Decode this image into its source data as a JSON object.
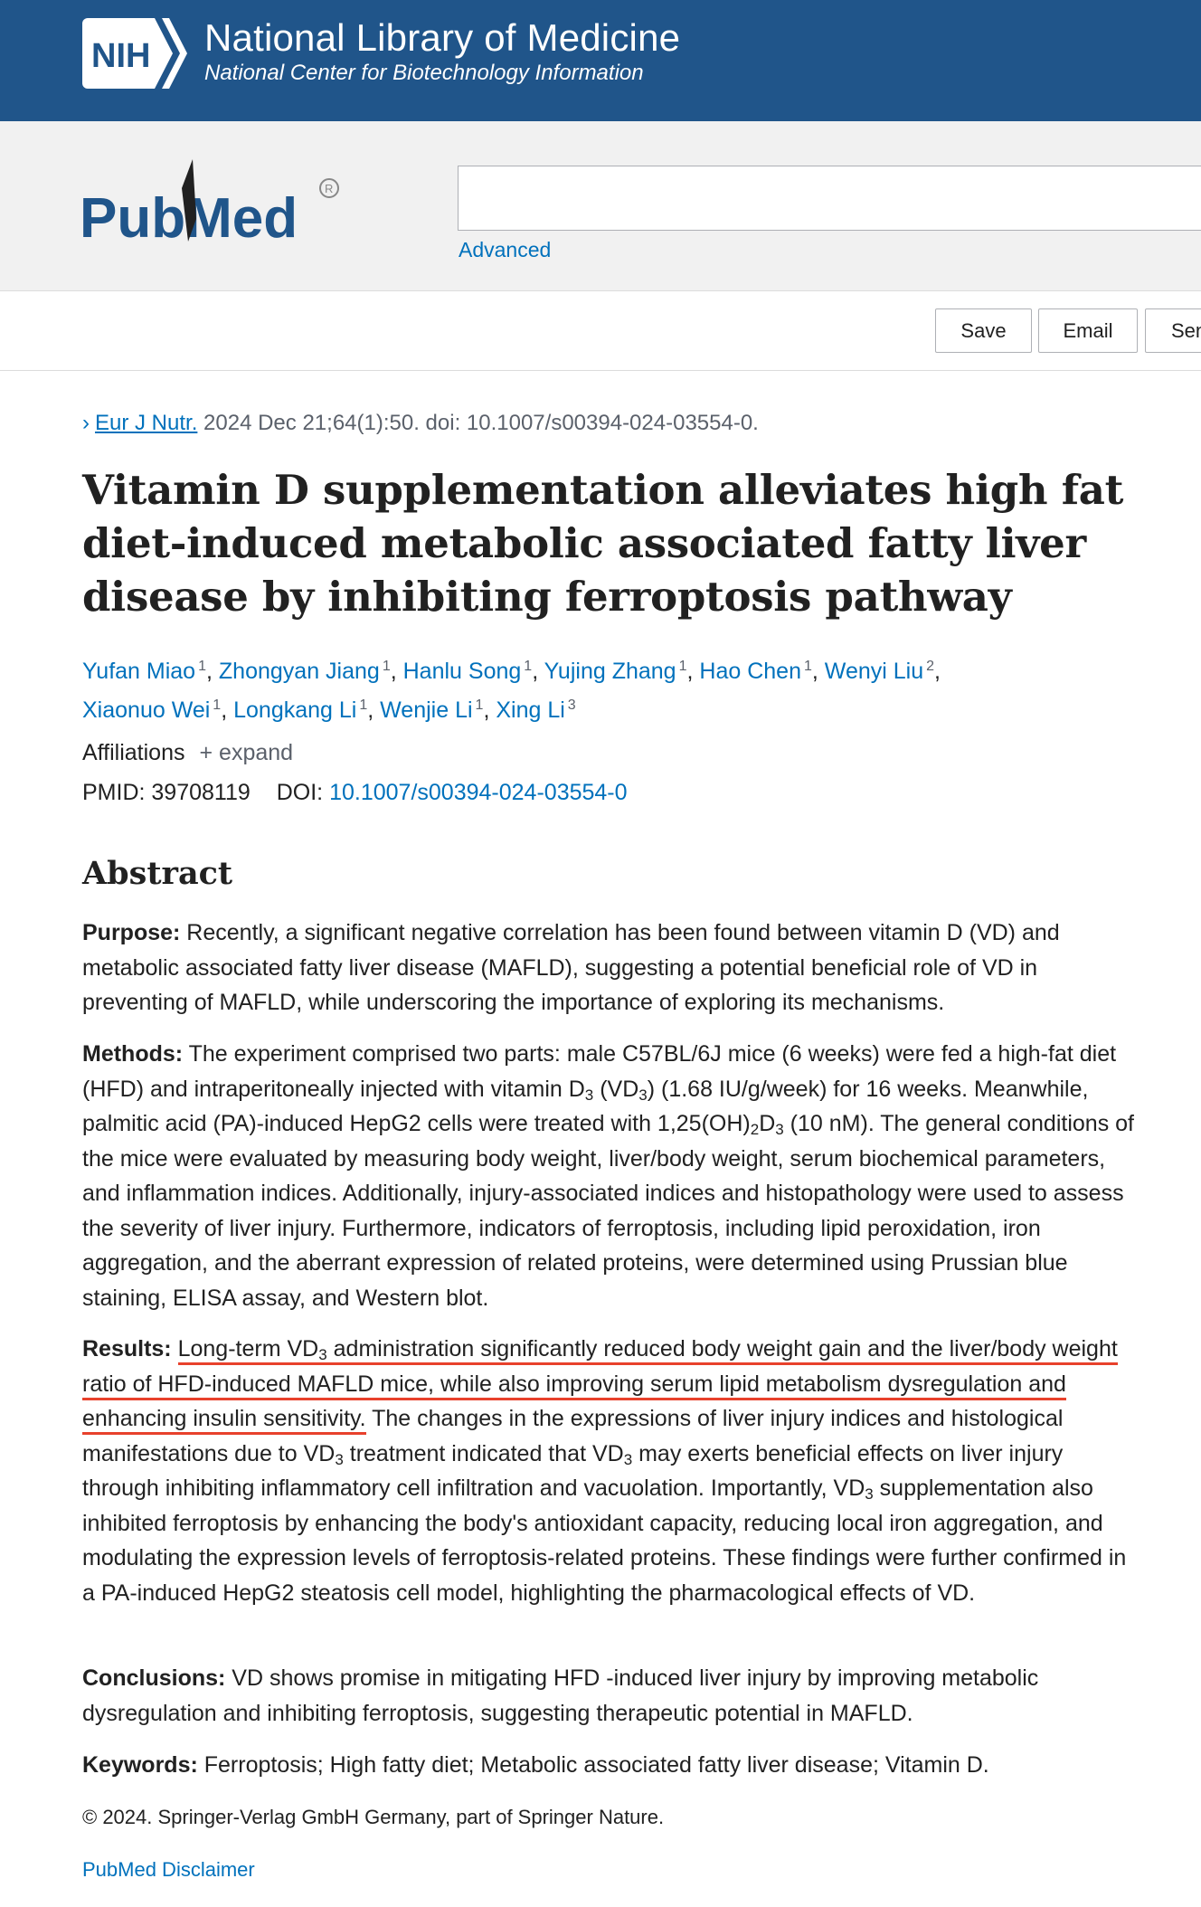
{
  "header": {
    "logo_text": "NIH",
    "title": "National Library of Medicine",
    "subtitle": "National Center for Biotechnology Information",
    "background_color": "#20558a"
  },
  "search": {
    "logo_text": "PubMed",
    "input_value": "",
    "advanced_label": "Advanced"
  },
  "actions": {
    "save_label": "Save",
    "email_label": "Email",
    "send_label": "Send to"
  },
  "citation": {
    "chevron_icon": "chevron-right-icon",
    "journal": "Eur J Nutr.",
    "details": " 2024 Dec 21;64(1):50. doi: 10.1007/s00394-024-03554-0."
  },
  "article": {
    "title": "Vitamin D supplementation alleviates high fat diet-induced metabolic associated fatty liver disease by inhibiting ferroptosis pathway",
    "authors": [
      {
        "name": "Yufan Miao",
        "aff": "1"
      },
      {
        "name": "Zhongyan Jiang",
        "aff": "1"
      },
      {
        "name": "Hanlu Song",
        "aff": "1"
      },
      {
        "name": "Yujing Zhang",
        "aff": "1"
      },
      {
        "name": "Hao Chen",
        "aff": "1"
      },
      {
        "name": "Wenyi Liu",
        "aff": "2"
      },
      {
        "name": "Xiaonuo Wei",
        "aff": "1"
      },
      {
        "name": "Longkang Li",
        "aff": "1"
      },
      {
        "name": "Wenjie Li",
        "aff": "1"
      },
      {
        "name": "Xing Li",
        "aff": "3"
      }
    ],
    "affiliations_label": "Affiliations",
    "expand_label": "+ expand",
    "pmid_label": "PMID:",
    "pmid": "39708119",
    "doi_label": "DOI:",
    "doi": "10.1007/s00394-024-03554-0"
  },
  "abstract": {
    "heading": "Abstract",
    "purpose_label": "Purpose:",
    "purpose_text": " Recently, a significant negative correlation has been found between vitamin D (VD) and metabolic associated fatty liver disease (MAFLD), suggesting a potential beneficial role of VD in preventing of MAFLD, while underscoring the importance of exploring its mechanisms.",
    "methods_label": "Methods:",
    "methods_text_1": " The experiment comprised two parts: male C57BL/6J mice (6 weeks) were fed a high-fat diet (HFD) and intraperitoneally injected with vitamin D",
    "methods_sub_1": "3",
    "methods_text_2": " (VD",
    "methods_sub_2": "3",
    "methods_text_3": ") (1.68 IU/g/week) for 16 weeks. Meanwhile, palmitic acid (PA)-induced HepG2 cells were treated with 1,25(OH)",
    "methods_sub_3": "2",
    "methods_text_4": "D",
    "methods_sub_4": "3",
    "methods_text_5": " (10 nM). The general conditions of the mice were evaluated by measuring body weight, liver/body weight, serum biochemical parameters, and inflammation indices. Additionally, injury-associated indices and histopathology were used to assess the severity of liver injury. Furthermore, indicators of ferroptosis, including lipid peroxidation, iron aggregation, and the aberrant expression of related proteins, were determined using Prussian blue staining, ELISA assay, and Western blot.",
    "results_label": "Results:",
    "results_hl_1": "Long-term VD",
    "results_hl_sub": "3",
    "results_hl_2": " administration significantly reduced body weight gain and the liver/body weight ratio of HFD-induced MAFLD mice, while also improving serum lipid metabolism dysregulation and enhancing insulin sensitivity.",
    "results_text_1": " The changes in the expressions of liver injury indices and histological manifestations due to VD",
    "results_sub_1": "3",
    "results_text_2": " treatment indicated that VD",
    "results_sub_2": "3",
    "results_text_3": " may exerts beneficial effects on liver injury through inhibiting inflammatory cell infiltration and vacuolation. Importantly, VD",
    "results_sub_3": "3",
    "results_text_4": " supplementation also inhibited ferroptosis by enhancing the body's antioxidant capacity, reducing local iron aggregation, and modulating the expression levels of ferroptosis-related proteins. These findings were further confirmed in a PA-induced HepG2 steatosis cell model, highlighting the pharmacological effects of VD.",
    "conclusions_label": "Conclusions:",
    "conclusions_text": " VD shows promise in mitigating HFD -induced liver injury by improving metabolic dysregulation and inhibiting ferroptosis, suggesting therapeutic potential in MAFLD.",
    "keywords_label": "Keywords:",
    "keywords_text": " Ferroptosis; High fatty diet; Metabolic associated fatty liver disease; Vitamin D.",
    "highlight_color": "#e8412c"
  },
  "footer": {
    "copyright": "© 2024. Springer-Verlag GmbH Germany, part of Springer Nature.",
    "disclaimer": "PubMed Disclaimer"
  }
}
